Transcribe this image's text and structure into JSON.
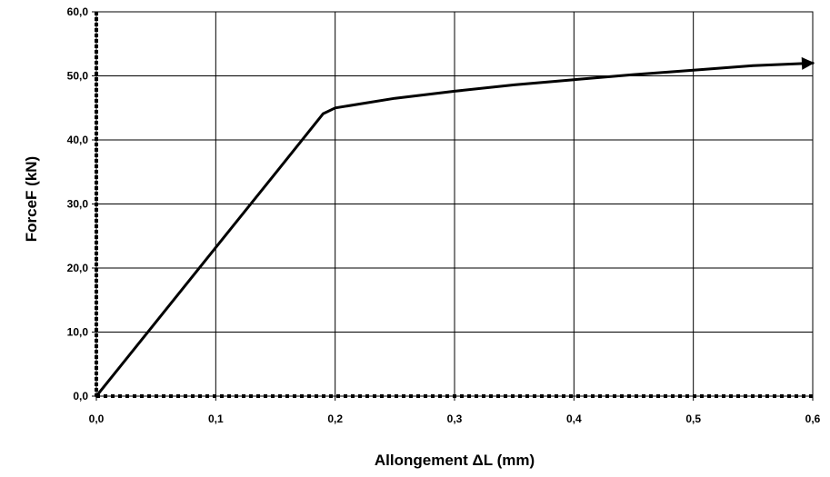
{
  "chart_data": {
    "type": "line",
    "title": "",
    "xlabel": "Allongement ΔL (mm)",
    "ylabel": "ForceF (kN)",
    "xlim": [
      0,
      0.6
    ],
    "ylim": [
      0,
      60
    ],
    "x_ticks": [
      "0,0",
      "0,1",
      "0,2",
      "0,3",
      "0,4",
      "0,5",
      "0,6"
    ],
    "y_ticks": [
      "0,0",
      "10,0",
      "20,0",
      "30,0",
      "40,0",
      "50,0",
      "60,0"
    ],
    "grid": true,
    "legend": "none",
    "series": [
      {
        "x": [
          0.0,
          0.05,
          0.1,
          0.15,
          0.19,
          0.2,
          0.25,
          0.3,
          0.35,
          0.4,
          0.45,
          0.5,
          0.55,
          0.6
        ],
        "y": [
          0.0,
          11.6,
          23.2,
          34.8,
          44.1,
          45.0,
          46.5,
          47.6,
          48.6,
          49.4,
          50.2,
          50.9,
          51.6,
          52.0
        ]
      }
    ],
    "line_color": "#000000",
    "end_marker": "arrow"
  }
}
